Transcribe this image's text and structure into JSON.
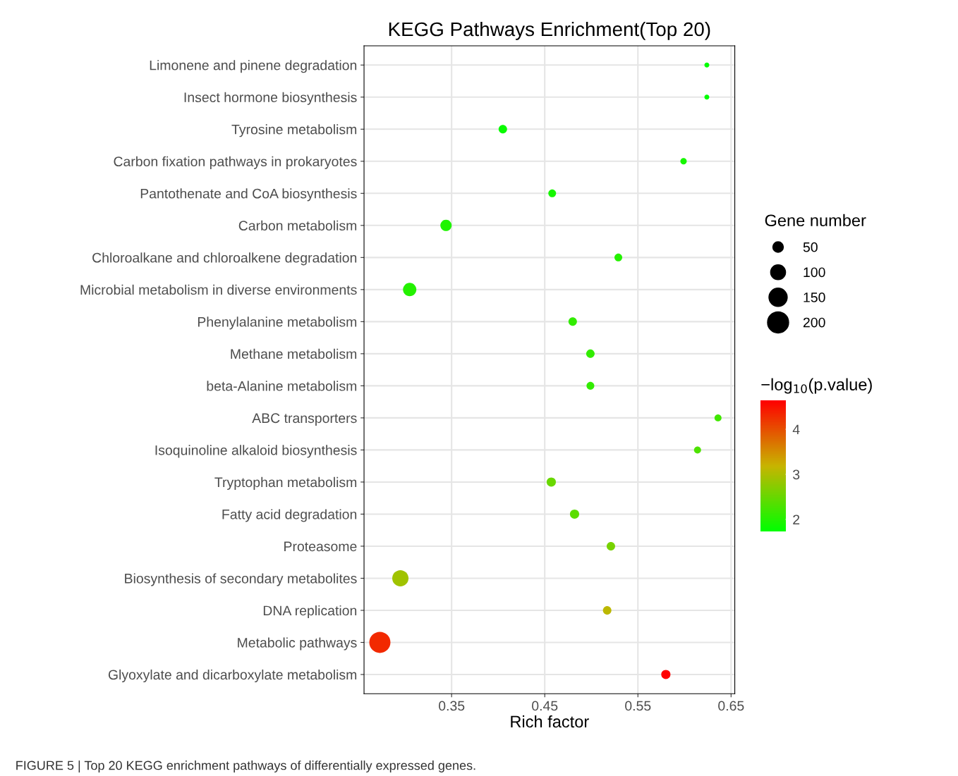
{
  "chart_data": {
    "type": "bubble",
    "orientation": "horizontal",
    "title": "KEGG Pathways Enrichment(Top 20)",
    "xlabel": "Rich factor",
    "categories": [
      "Limonene and pinene degradation",
      "Insect hormone biosynthesis",
      "Tyrosine metabolism",
      "Carbon fixation pathways in prokaryotes",
      "Pantothenate and CoA biosynthesis",
      "Carbon metabolism",
      "Chloroalkane and chloroalkene degradation",
      "Microbial metabolism in diverse environments",
      "Phenylalanine metabolism",
      "Methane metabolism",
      "beta-Alanine metabolism",
      "ABC transporters",
      "Isoquinoline alkaloid biosynthesis",
      "Tryptophan metabolism",
      "Fatty acid degradation",
      "Proteasome",
      "Biosynthesis of secondary metabolites",
      "DNA replication",
      "Metabolic pathways",
      "Glyoxylate and dicarboxylate metabolism"
    ],
    "values": [
      0.624,
      0.624,
      0.405,
      0.599,
      0.458,
      0.344,
      0.529,
      0.305,
      0.48,
      0.499,
      0.499,
      0.636,
      0.614,
      0.457,
      0.482,
      0.521,
      0.295,
      0.517,
      0.273,
      0.58
    ],
    "sizes": [
      11,
      11,
      32,
      18,
      27,
      57,
      27,
      80,
      32,
      32,
      27,
      22,
      22,
      38,
      38,
      32,
      118,
      32,
      200,
      38
    ],
    "cvalues": [
      1.75,
      1.75,
      1.8,
      1.9,
      1.9,
      1.95,
      2.0,
      2.0,
      2.1,
      2.1,
      2.1,
      2.2,
      2.3,
      2.5,
      2.4,
      2.6,
      2.9,
      3.1,
      4.3,
      4.64
    ],
    "size_legend": [
      50,
      100,
      150,
      200
    ],
    "legend_title": "Gene number",
    "clabel": "−log$_{10}$(p.value)",
    "clim": [
      1.73,
      4.64
    ],
    "cticks": [
      2,
      3,
      4
    ],
    "xlim": [
      0.256,
      0.654
    ],
    "xticks": [
      0.35,
      0.45,
      0.55,
      0.65
    ],
    "grid": true,
    "annotations": [
      "FIGURE 5 | Top 20 KEGG enrichment pathways of differentially expressed genes."
    ]
  }
}
